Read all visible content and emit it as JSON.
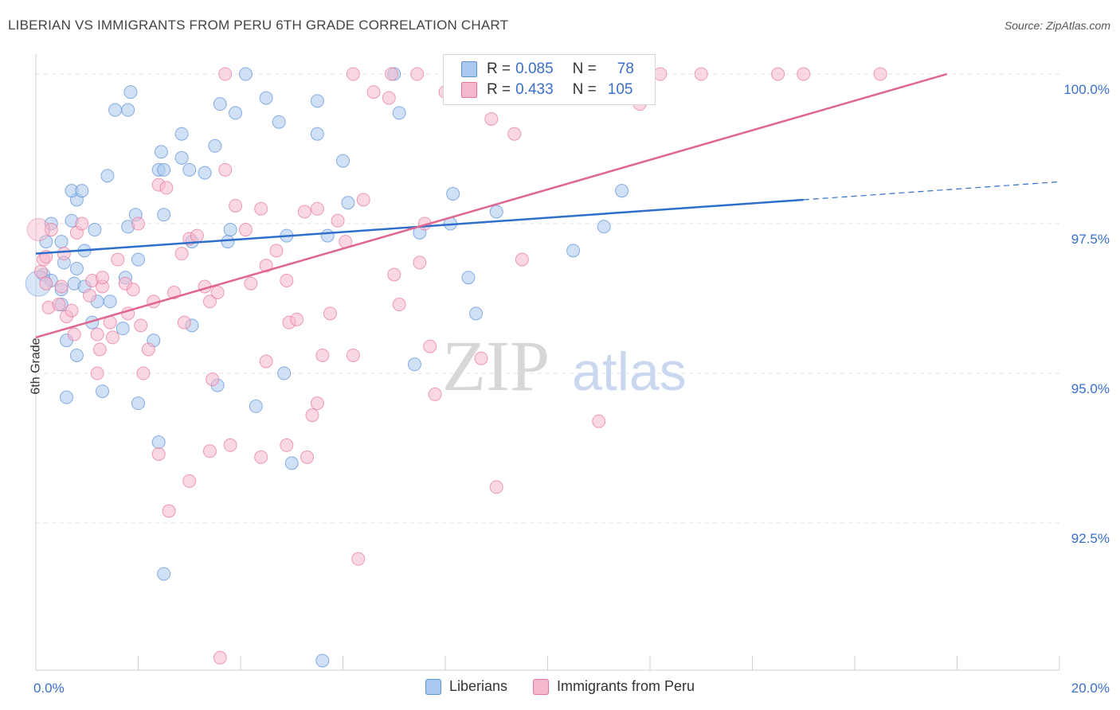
{
  "title": "LIBERIAN VS IMMIGRANTS FROM PERU 6TH GRADE CORRELATION CHART",
  "source": "Source: ZipAtlas.com",
  "watermark": {
    "zip": "ZIP",
    "atlas": "atlas"
  },
  "legend": {
    "rows": [
      {
        "r_label": "R =",
        "r_value": "0.085",
        "n_label": "N =",
        "n_value": "78",
        "color": "#aac8ee"
      },
      {
        "r_label": "R =",
        "r_value": "0.433",
        "n_label": "N =",
        "n_value": "105",
        "color": "#f6b8cc"
      }
    ]
  },
  "bottom_legend": [
    {
      "label": "Liberians",
      "color": "#aac8ee"
    },
    {
      "label": "Immigrants from Peru",
      "color": "#f6b8cc"
    }
  ],
  "chart_data": {
    "type": "scatter",
    "ylabel": "6th Grade",
    "xlabel": "",
    "xlim": [
      0,
      20
    ],
    "ylim": [
      90.2,
      100.2
    ],
    "x_tick_labels": [
      {
        "value": 0,
        "label": "0.0%"
      },
      {
        "value": 20,
        "label": "20.0%"
      }
    ],
    "y_tick_labels": [
      {
        "value": 100,
        "label": "100.0%"
      },
      {
        "value": 97.5,
        "label": "97.5%"
      },
      {
        "value": 95,
        "label": "95.0%"
      },
      {
        "value": 92.5,
        "label": "92.5%"
      }
    ],
    "grid": true,
    "series": [
      {
        "name": "Liberians",
        "color": "#5b8fd6",
        "fill": "#aac8ee",
        "trend": {
          "x": [
            0,
            15
          ],
          "y": [
            97.0,
            97.9
          ],
          "dash_to": [
            20,
            98.2
          ]
        },
        "points": [
          [
            0.3,
            97.5
          ],
          [
            0.2,
            97.2
          ],
          [
            0.5,
            97.2
          ],
          [
            0.7,
            97.55
          ],
          [
            0.8,
            97.9
          ],
          [
            0.7,
            98.05
          ],
          [
            0.9,
            98.05
          ],
          [
            0.15,
            96.65
          ],
          [
            0.3,
            96.55
          ],
          [
            0.5,
            96.4
          ],
          [
            0.5,
            96.15
          ],
          [
            0.8,
            96.75
          ],
          [
            0.95,
            97.05
          ],
          [
            0.75,
            96.5
          ],
          [
            1.15,
            97.4
          ],
          [
            1.4,
            98.3
          ],
          [
            1.55,
            99.4
          ],
          [
            1.8,
            99.4
          ],
          [
            1.8,
            97.45
          ],
          [
            2.0,
            96.9
          ],
          [
            1.95,
            97.65
          ],
          [
            1.75,
            96.6
          ],
          [
            1.7,
            95.75
          ],
          [
            2.3,
            95.55
          ],
          [
            2.0,
            94.5
          ],
          [
            0.8,
            95.3
          ],
          [
            1.2,
            96.2
          ],
          [
            1.1,
            95.85
          ],
          [
            1.85,
            99.7
          ],
          [
            2.4,
            98.4
          ],
          [
            2.5,
            97.65
          ],
          [
            2.5,
            98.4
          ],
          [
            2.45,
            98.7
          ],
          [
            2.85,
            98.6
          ],
          [
            2.85,
            99.0
          ],
          [
            3.0,
            98.4
          ],
          [
            3.05,
            97.2
          ],
          [
            3.05,
            95.8
          ],
          [
            3.3,
            98.35
          ],
          [
            3.5,
            98.8
          ],
          [
            3.75,
            97.2
          ],
          [
            3.9,
            99.35
          ],
          [
            3.8,
            97.4
          ],
          [
            3.55,
            94.8
          ],
          [
            3.6,
            99.5
          ],
          [
            2.4,
            93.85
          ],
          [
            2.5,
            91.65
          ],
          [
            4.5,
            99.6
          ],
          [
            4.1,
            100.0
          ],
          [
            4.75,
            99.2
          ],
          [
            4.9,
            97.3
          ],
          [
            4.85,
            95.0
          ],
          [
            5.0,
            93.5
          ],
          [
            5.5,
            99.55
          ],
          [
            5.5,
            99.0
          ],
          [
            6.0,
            98.55
          ],
          [
            6.1,
            97.85
          ],
          [
            5.7,
            97.3
          ],
          [
            7.0,
            100.0
          ],
          [
            7.1,
            99.35
          ],
          [
            7.5,
            97.35
          ],
          [
            7.4,
            95.15
          ],
          [
            8.15,
            98.0
          ],
          [
            8.1,
            97.5
          ],
          [
            8.45,
            96.6
          ],
          [
            8.6,
            96.0
          ],
          [
            5.6,
            90.2
          ],
          [
            4.3,
            94.45
          ],
          [
            1.45,
            96.2
          ],
          [
            10.5,
            97.05
          ],
          [
            11.1,
            97.45
          ],
          [
            11.45,
            98.05
          ],
          [
            0.6,
            95.55
          ],
          [
            0.95,
            96.45
          ],
          [
            0.55,
            96.85
          ],
          [
            1.3,
            94.7
          ],
          [
            0.6,
            94.6
          ],
          [
            9.0,
            97.7
          ]
        ]
      },
      {
        "name": "Immigrants from Peru",
        "color": "#e6759a",
        "fill": "#f6b8cc",
        "trend": {
          "x": [
            0,
            17.8
          ],
          "y": [
            95.6,
            100.0
          ]
        },
        "points": [
          [
            0.1,
            96.7
          ],
          [
            0.15,
            96.9
          ],
          [
            0.2,
            96.5
          ],
          [
            0.25,
            96.1
          ],
          [
            0.3,
            97.4
          ],
          [
            0.45,
            96.15
          ],
          [
            0.5,
            96.45
          ],
          [
            0.6,
            95.95
          ],
          [
            0.7,
            96.05
          ],
          [
            0.75,
            95.65
          ],
          [
            0.8,
            97.35
          ],
          [
            0.9,
            97.5
          ],
          [
            1.05,
            96.3
          ],
          [
            1.1,
            96.55
          ],
          [
            1.2,
            95.65
          ],
          [
            1.25,
            95.4
          ],
          [
            1.3,
            96.45
          ],
          [
            1.45,
            95.85
          ],
          [
            1.5,
            95.6
          ],
          [
            1.6,
            96.9
          ],
          [
            1.75,
            96.5
          ],
          [
            1.8,
            96.0
          ],
          [
            1.9,
            96.4
          ],
          [
            2.0,
            97.5
          ],
          [
            2.05,
            95.8
          ],
          [
            2.2,
            95.4
          ],
          [
            2.3,
            96.2
          ],
          [
            2.4,
            98.15
          ],
          [
            2.55,
            98.1
          ],
          [
            2.7,
            96.35
          ],
          [
            2.85,
            97.0
          ],
          [
            2.9,
            95.85
          ],
          [
            3.0,
            97.25
          ],
          [
            3.15,
            97.3
          ],
          [
            3.3,
            96.45
          ],
          [
            3.4,
            96.2
          ],
          [
            3.55,
            96.35
          ],
          [
            3.7,
            98.4
          ],
          [
            3.9,
            97.8
          ],
          [
            4.1,
            97.4
          ],
          [
            4.2,
            96.5
          ],
          [
            4.4,
            97.75
          ],
          [
            4.5,
            96.8
          ],
          [
            4.7,
            97.05
          ],
          [
            4.9,
            96.55
          ],
          [
            4.95,
            95.85
          ],
          [
            5.1,
            95.9
          ],
          [
            5.25,
            97.7
          ],
          [
            5.5,
            97.75
          ],
          [
            5.6,
            95.3
          ],
          [
            5.75,
            96.0
          ],
          [
            5.9,
            97.55
          ],
          [
            6.05,
            97.2
          ],
          [
            6.2,
            95.3
          ],
          [
            6.4,
            97.9
          ],
          [
            6.6,
            99.7
          ],
          [
            6.9,
            99.6
          ],
          [
            7.0,
            96.65
          ],
          [
            7.1,
            96.15
          ],
          [
            7.5,
            96.85
          ],
          [
            7.6,
            97.5
          ],
          [
            7.7,
            95.45
          ],
          [
            7.8,
            94.65
          ],
          [
            8.0,
            99.7
          ],
          [
            8.2,
            99.85
          ],
          [
            8.4,
            100.0
          ],
          [
            8.5,
            99.85
          ],
          [
            8.7,
            95.25
          ],
          [
            8.9,
            99.25
          ],
          [
            9.0,
            93.1
          ],
          [
            9.1,
            100.0
          ],
          [
            9.35,
            99.0
          ],
          [
            9.5,
            96.9
          ],
          [
            9.8,
            100.0
          ],
          [
            10.4,
            100.0
          ],
          [
            11.0,
            94.2
          ],
          [
            11.8,
            99.5
          ],
          [
            12.2,
            100.0
          ],
          [
            13.0,
            100.0
          ],
          [
            14.5,
            100.0
          ],
          [
            15.0,
            100.0
          ],
          [
            16.5,
            100.0
          ],
          [
            6.2,
            100.0
          ],
          [
            7.45,
            100.0
          ],
          [
            2.6,
            92.7
          ],
          [
            3.0,
            93.2
          ],
          [
            3.4,
            93.7
          ],
          [
            2.4,
            93.65
          ],
          [
            3.8,
            93.8
          ],
          [
            4.5,
            95.2
          ],
          [
            4.4,
            93.6
          ],
          [
            5.4,
            94.3
          ],
          [
            5.5,
            94.5
          ],
          [
            6.3,
            91.9
          ],
          [
            4.9,
            93.8
          ],
          [
            3.6,
            90.25
          ],
          [
            1.2,
            95.0
          ],
          [
            2.1,
            95.0
          ],
          [
            3.45,
            94.9
          ],
          [
            5.3,
            93.6
          ],
          [
            0.55,
            97.0
          ],
          [
            0.2,
            96.95
          ],
          [
            1.3,
            96.6
          ],
          [
            3.7,
            100.0
          ],
          [
            6.95,
            100.0
          ]
        ]
      }
    ]
  }
}
